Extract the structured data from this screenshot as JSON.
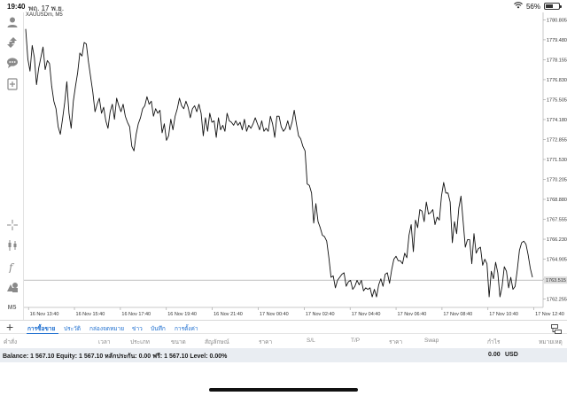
{
  "status_bar": {
    "time": "19:40",
    "date": "พฤ. 17 พ.ย.",
    "battery": "56%",
    "battery_level": 0.56
  },
  "toolbar": {
    "icons": [
      "account-icon",
      "trade-icon",
      "chat-icon",
      "add-document-icon",
      "crosshair-icon",
      "candles-icon",
      "indicator-icon",
      "objects-icon"
    ],
    "timeframe": "M5"
  },
  "chart": {
    "symbol": "XAUUSDm, M5",
    "line_color": "#111111",
    "bid_line_color": "#9a9a9a",
    "current_price_label": "1763.515",
    "current_price": 1763.515,
    "price_ticks": [
      "1780.805",
      "1779.480",
      "1778.155",
      "1776.830",
      "1775.505",
      "1774.180",
      "1772.855",
      "1771.530",
      "1770.205",
      "1768.880",
      "1767.555",
      "1766.230",
      "1764.905",
      "1763.580",
      "1762.255"
    ],
    "time_ticks": [
      "16 Nov 13:40",
      "16 Nov 15:40",
      "16 Nov 17:40",
      "16 Nov 19:40",
      "16 Nov 21:40",
      "17 Nov 00:40",
      "17 Nov 02:40",
      "17 Nov 04:40",
      "17 Nov 06:40",
      "17 Nov 08:40",
      "17 Nov 10:40",
      "17 Nov 12:40"
    ]
  },
  "chart_data": {
    "type": "line",
    "title": "XAUUSDm, M5",
    "xlabel": "",
    "ylabel": "",
    "ylim": [
      1761.7,
      1781.3
    ],
    "x_range": [
      0,
      11.3
    ],
    "x_unit": "tick index",
    "current_price": 1763.515,
    "series": [
      {
        "values": [
          1780.2,
          1778.2,
          1777.4,
          1779.1,
          1778.3,
          1776.5,
          1777.6,
          1778.3,
          1779.0,
          1777.5,
          1778.1,
          1777.9,
          1776.4,
          1775.4,
          1774.9,
          1773.7,
          1773.2,
          1774.2,
          1775.3,
          1776.7,
          1774.6,
          1773.6,
          1775.4,
          1776.4,
          1777.3,
          1778.6,
          1778.4,
          1779.3,
          1779.2,
          1778.0,
          1777.0,
          1776.0,
          1774.7,
          1775.2,
          1775.6,
          1774.6,
          1775.0,
          1774.1,
          1773.6,
          1774.7,
          1775.2,
          1774.2,
          1775.6,
          1775.1,
          1774.7,
          1775.2,
          1774.4,
          1774.0,
          1773.7,
          1772.4,
          1772.1,
          1773.2,
          1773.9,
          1774.3,
          1774.9,
          1775.1,
          1775.7,
          1775.2,
          1775.4,
          1774.4,
          1774.9,
          1774.6,
          1774.8,
          1773.3,
          1773.9,
          1772.8,
          1773.1,
          1774.2,
          1773.5,
          1774.4,
          1774.9,
          1775.6,
          1775.1,
          1774.9,
          1775.4,
          1775.0,
          1774.3,
          1774.9,
          1775.1,
          1774.7,
          1775.2,
          1774.6,
          1773.1,
          1774.3,
          1773.4,
          1774.6,
          1774.0,
          1774.1,
          1773.0,
          1774.3,
          1773.5,
          1773.8,
          1773.4,
          1774.6,
          1774.1,
          1774.0,
          1773.8,
          1774.1,
          1773.8,
          1774.0,
          1773.5,
          1774.2,
          1773.4,
          1773.8,
          1773.6,
          1773.9,
          1774.3,
          1773.9,
          1773.5,
          1774.1,
          1773.4,
          1773.6,
          1773.4,
          1774.4,
          1773.9,
          1773.0,
          1774.4,
          1774.4,
          1773.7,
          1773.4,
          1773.6,
          1774.1,
          1773.5,
          1774.0,
          1774.8,
          1773.9,
          1773.1,
          1772.9,
          1772.4,
          1772.1,
          1769.9,
          1769.8,
          1769.3,
          1767.3,
          1768.6,
          1767.4,
          1767.0,
          1766.5,
          1766.4,
          1766.1,
          1765.0,
          1763.7,
          1763.8,
          1763.0,
          1763.5,
          1763.7,
          1763.9,
          1764.0,
          1763.1,
          1763.4,
          1763.5,
          1762.9,
          1763.1,
          1763.5,
          1763.2,
          1763.5,
          1762.8,
          1763.0,
          1762.9,
          1763.0,
          1762.4,
          1762.9,
          1762.4,
          1763.2,
          1763.6,
          1763.1,
          1763.9,
          1764.0,
          1763.3,
          1764.2,
          1764.9,
          1765.1,
          1764.8,
          1764.8,
          1764.6,
          1765.3,
          1765.0,
          1766.5,
          1767.2,
          1765.4,
          1767.5,
          1767.0,
          1768.2,
          1768.1,
          1767.4,
          1768.7,
          1767.9,
          1768.0,
          1768.2,
          1767.2,
          1767.7,
          1767.5,
          1769.1,
          1770.0,
          1769.3,
          1769.3,
          1768.7,
          1766.0,
          1767.4,
          1766.6,
          1768.3,
          1769.1,
          1767.4,
          1765.7,
          1766.2,
          1766.2,
          1764.6,
          1766.6,
          1765.3,
          1765.6,
          1765.7,
          1764.5,
          1764.9,
          1764.6,
          1762.4,
          1764.1,
          1763.6,
          1764.7,
          1764.0,
          1762.4,
          1763.1,
          1764.4,
          1764.1,
          1763.0,
          1763.7,
          1762.9,
          1763.1,
          1764.2,
          1765.5,
          1766.0,
          1766.1,
          1765.9,
          1765.2,
          1764.3,
          1763.7
        ]
      }
    ],
    "grid": false,
    "legend": "none"
  },
  "terminal": {
    "tabs": [
      {
        "label": "การซื้อขาย",
        "active": true
      },
      {
        "label": "ประวัติ",
        "active": false
      },
      {
        "label": "กล่องจดหมาย",
        "active": false
      },
      {
        "label": "ข่าว",
        "active": false
      },
      {
        "label": "บันทึก",
        "active": false
      },
      {
        "label": "การตั้งค่า",
        "active": false
      }
    ],
    "columns": [
      "คำสั่ง",
      "เวลา",
      "ประเภท",
      "ขนาด",
      "สัญลักษณ์",
      "ราคา",
      "S/L",
      "T/P",
      "ราคา",
      "Swap",
      "กำไร",
      "หมายเหตุ"
    ],
    "balance_text": "Balance: 1 567.10 Equity: 1 567.10 หลักประกัน: 0.00 ฟรี: 1 567.10 Level: 0.00%",
    "balance_profit": "0.00",
    "balance_currency": "USD"
  }
}
